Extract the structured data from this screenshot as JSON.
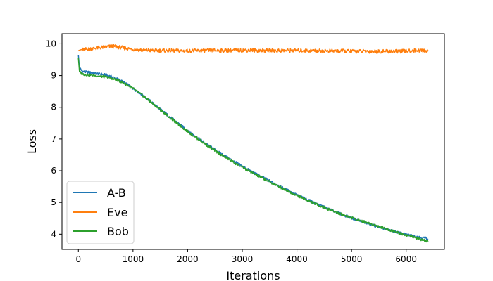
{
  "chart_data": {
    "type": "line",
    "title": "",
    "xlabel": "Iterations",
    "ylabel": "Loss",
    "xlim": [
      -300,
      6700
    ],
    "ylim": [
      3.52,
      10.32
    ],
    "xticks": [
      0,
      1000,
      2000,
      3000,
      4000,
      5000,
      6000
    ],
    "yticks": [
      4,
      5,
      6,
      7,
      8,
      9,
      10
    ],
    "grid": false,
    "legend_position": "lower-left",
    "series": [
      {
        "name": "A-B",
        "color": "#1f77b4",
        "x": [
          0,
          20,
          60,
          100,
          200,
          300,
          400,
          500,
          600,
          700,
          800,
          900,
          1000,
          1200,
          1400,
          1600,
          1800,
          2000,
          2200,
          2400,
          2600,
          2800,
          3000,
          3200,
          3400,
          3600,
          3800,
          4000,
          4200,
          4400,
          4600,
          4800,
          5000,
          5200,
          5400,
          5600,
          5800,
          6000,
          6200,
          6400
        ],
        "y": [
          9.65,
          9.25,
          9.15,
          9.12,
          9.1,
          9.07,
          9.05,
          9.02,
          8.97,
          8.9,
          8.82,
          8.72,
          8.6,
          8.35,
          8.08,
          7.8,
          7.53,
          7.27,
          7.02,
          6.78,
          6.55,
          6.34,
          6.14,
          5.95,
          5.77,
          5.59,
          5.41,
          5.24,
          5.08,
          4.93,
          4.78,
          4.64,
          4.51,
          4.39,
          4.28,
          4.17,
          4.08,
          3.99,
          3.92,
          3.86
        ]
      },
      {
        "name": "Eve",
        "color": "#ff7f0e",
        "x": [
          0,
          20,
          100,
          200,
          300,
          400,
          500,
          600,
          700,
          800,
          900,
          1000,
          1200,
          1400,
          1600,
          1800,
          2000,
          2500,
          3000,
          3500,
          4000,
          4500,
          5000,
          5500,
          6000,
          6200,
          6400
        ],
        "y": [
          9.78,
          9.8,
          9.82,
          9.84,
          9.86,
          9.88,
          9.9,
          9.92,
          9.91,
          9.88,
          9.85,
          9.83,
          9.8,
          9.79,
          9.79,
          9.78,
          9.78,
          9.79,
          9.8,
          9.79,
          9.79,
          9.78,
          9.77,
          9.76,
          9.77,
          9.8,
          9.78
        ]
      },
      {
        "name": "Bob",
        "color": "#2ca02c",
        "x": [
          0,
          20,
          60,
          100,
          200,
          300,
          400,
          500,
          600,
          700,
          800,
          900,
          1000,
          1200,
          1400,
          1600,
          1800,
          2000,
          2200,
          2400,
          2600,
          2800,
          3000,
          3200,
          3400,
          3600,
          3800,
          4000,
          4200,
          4400,
          4600,
          4800,
          5000,
          5200,
          5400,
          5600,
          5800,
          6000,
          6200,
          6400
        ],
        "y": [
          9.55,
          9.12,
          9.06,
          9.04,
          9.02,
          9.0,
          8.98,
          8.95,
          8.92,
          8.86,
          8.79,
          8.7,
          8.59,
          8.34,
          8.06,
          7.78,
          7.5,
          7.24,
          6.99,
          6.75,
          6.52,
          6.31,
          6.11,
          5.92,
          5.74,
          5.56,
          5.39,
          5.22,
          5.06,
          4.91,
          4.77,
          4.64,
          4.52,
          4.41,
          4.3,
          4.19,
          4.08,
          3.97,
          3.87,
          3.76
        ]
      }
    ]
  }
}
